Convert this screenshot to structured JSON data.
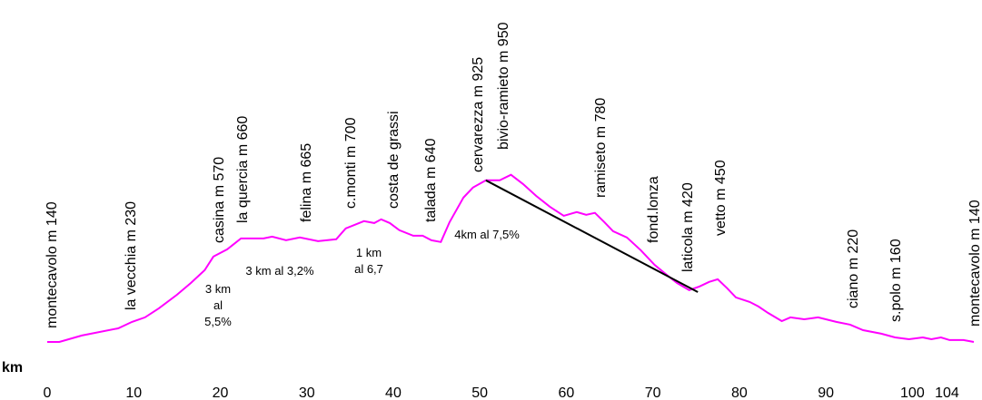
{
  "chart_data": {
    "type": "line",
    "x_label": "km",
    "xlim": [
      0,
      107.1
    ],
    "ylim": [
      0,
      1800
    ],
    "xticks": [
      0,
      10,
      20,
      30,
      40,
      50,
      60,
      70,
      80,
      90,
      100,
      104
    ],
    "series": [
      {
        "color": "#ff00ff",
        "x": [
          0,
          1.4,
          4,
          8.2,
          9.8,
          11.3,
          12.9,
          15,
          16.6,
          18.2,
          19.2,
          20.8,
          22.4,
          25,
          26,
          27.6,
          29.2,
          31.3,
          33.4,
          34.5,
          36.6,
          37.8,
          38.6,
          39.6,
          40.7,
          42.3,
          43.4,
          44.4,
          45.5,
          46.5,
          48.1,
          49.2,
          50.7,
          52.3,
          53.6,
          55,
          56.5,
          58.1,
          59.7,
          61.2,
          62.3,
          63.3,
          64.4,
          65.4,
          67,
          68.6,
          70.2,
          71.7,
          72.8,
          74.2,
          75.4,
          76.5,
          77.5,
          78.6,
          79.6,
          81.2,
          82.2,
          83.3,
          84.9,
          85.9,
          87.5,
          89.1,
          91.2,
          92.8,
          94.3,
          96.4,
          98,
          99.6,
          101.2,
          102.2,
          103.3,
          104.3,
          105.9,
          107.1
        ],
        "values": [
          141,
          141,
          172,
          207,
          238,
          260,
          304,
          370,
          427,
          489,
          555,
          590,
          643,
          643,
          652,
          634,
          648,
          630,
          639,
          692,
          727,
          718,
          736,
          718,
          683,
          656,
          656,
          634,
          626,
          722,
          841,
          890,
          925,
          925,
          952,
          907,
          850,
          797,
          753,
          771,
          758,
          767,
          722,
          678,
          648,
          586,
          515,
          463,
          427,
          392,
          410,
          432,
          445,
          401,
          357,
          335,
          313,
          282,
          242,
          260,
          251,
          260,
          238,
          225,
          198,
          181,
          163,
          154,
          163,
          154,
          163,
          150,
          150,
          141
        ]
      }
    ],
    "slope_line": {
      "color": "#000000",
      "x": [
        50.7,
        75.2
      ],
      "values": [
        925,
        383
      ]
    },
    "places": [
      "montecavolo m 140",
      "la vecchia m 230",
      "casina m 570",
      "la quercia m 660",
      "felina m 665",
      "c.monti m 700",
      "costa de grassi",
      "talada m 640",
      "cervarezza m 925",
      "bivio-ramieto m 950",
      "ramiseto m 780",
      "fond.lonza",
      "laticola m 420",
      "vetto m 450",
      "ciano m 220",
      "s.polo m 160",
      "montecavolo m 140"
    ],
    "annotations": [
      {
        "lines": [
          "3 km",
          "al",
          "5,5%"
        ]
      },
      {
        "lines": [
          "3 km al 3,2%"
        ]
      },
      {
        "lines": [
          "1 km",
          "al 6,7"
        ]
      },
      {
        "lines": [
          "4km al 7,5%"
        ]
      }
    ]
  }
}
